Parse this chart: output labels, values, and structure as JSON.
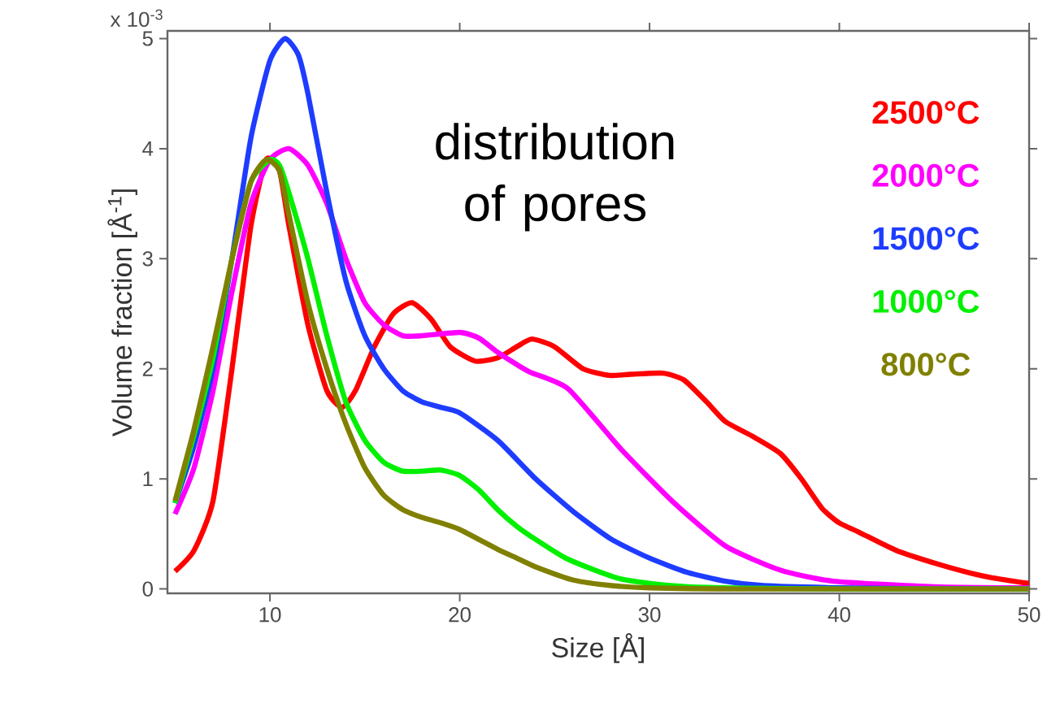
{
  "chart_data": {
    "type": "line",
    "xlabel": "Size [Å]",
    "ylabel": "Volume fraction [Å$^{-1}$]",
    "annotations": [
      "distribution of pores",
      "x 10$^{-3}$"
    ],
    "xlim": [
      4.6,
      50
    ],
    "xticks": [
      10,
      20,
      30,
      40,
      50
    ],
    "ylim": [
      -0.04,
      5.07
    ],
    "yticks": [
      0,
      1,
      2,
      3,
      4,
      5
    ],
    "grid": false,
    "legend": "top right",
    "marker": "none",
    "line_style": "solid",
    "series": [
      {
        "name": "2500°C",
        "color": "#ff0000",
        "x": [
          5,
          6,
          7,
          8,
          9,
          9.8,
          10.5,
          11,
          12,
          13,
          13.8,
          14.5,
          15.5,
          16.5,
          17.5,
          18.5,
          19.5,
          20.8,
          22,
          23,
          23.8,
          25,
          26.5,
          27.9,
          29,
          30.7,
          31.8,
          33,
          34,
          35.5,
          36.9,
          38,
          39.1,
          40,
          41.1,
          43,
          45.3,
          47,
          48.1,
          50
        ],
        "values": [
          0.16,
          0.35,
          0.8,
          2.0,
          3.3,
          3.9,
          3.8,
          3.3,
          2.4,
          1.8,
          1.65,
          1.8,
          2.2,
          2.5,
          2.6,
          2.45,
          2.2,
          2.07,
          2.1,
          2.2,
          2.27,
          2.2,
          2.0,
          1.94,
          1.95,
          1.96,
          1.9,
          1.7,
          1.52,
          1.38,
          1.23,
          1.0,
          0.73,
          0.6,
          0.51,
          0.35,
          0.22,
          0.14,
          0.1,
          0.05
        ]
      },
      {
        "name": "2000°C",
        "color": "#ff00ff",
        "x": [
          5,
          6,
          7,
          8,
          9,
          10,
          11,
          12,
          13,
          14,
          15,
          16,
          17,
          18,
          20,
          21,
          22,
          22.9,
          23.7,
          25.7,
          28.5,
          31.3,
          34,
          36.9,
          39.7,
          45,
          50
        ],
        "values": [
          0.68,
          1.1,
          1.8,
          2.7,
          3.5,
          3.9,
          4.0,
          3.85,
          3.5,
          3.0,
          2.6,
          2.4,
          2.3,
          2.3,
          2.33,
          2.28,
          2.15,
          2.05,
          1.97,
          1.82,
          1.27,
          0.78,
          0.39,
          0.17,
          0.07,
          0.02,
          0.01
        ]
      },
      {
        "name": "1500°C",
        "color": "#1e3cff",
        "x": [
          5,
          6,
          7,
          8,
          9,
          10,
          10.8,
          11.5,
          12,
          13,
          14,
          15,
          16,
          17,
          18,
          19,
          20,
          22,
          24,
          26,
          28,
          30,
          32,
          34,
          36,
          40,
          45,
          50
        ],
        "values": [
          0.78,
          1.3,
          2.0,
          3.0,
          4.1,
          4.8,
          5.0,
          4.85,
          4.5,
          3.6,
          2.8,
          2.3,
          2.0,
          1.8,
          1.7,
          1.65,
          1.6,
          1.35,
          1.0,
          0.7,
          0.45,
          0.28,
          0.15,
          0.07,
          0.03,
          0.01,
          0.0,
          0.0
        ]
      },
      {
        "name": "1000°C",
        "color": "#00f000",
        "x": [
          5,
          6,
          7,
          8,
          9,
          10,
          10.5,
          11,
          12,
          13,
          14,
          15,
          16,
          17,
          18,
          19,
          20,
          21,
          22,
          23,
          24,
          25.7,
          28.5,
          32,
          40,
          50
        ],
        "values": [
          0.78,
          1.4,
          2.1,
          3.0,
          3.7,
          3.9,
          3.85,
          3.6,
          3.0,
          2.3,
          1.7,
          1.35,
          1.15,
          1.07,
          1.07,
          1.08,
          1.03,
          0.9,
          0.72,
          0.57,
          0.45,
          0.27,
          0.09,
          0.02,
          0.0,
          0.0
        ]
      },
      {
        "name": "800°C",
        "color": "#808000",
        "x": [
          5,
          6,
          7,
          8,
          9,
          9.8,
          10.5,
          11,
          12,
          13,
          14,
          15,
          16,
          17,
          18,
          19,
          20,
          21,
          22,
          23,
          24,
          26,
          28,
          30,
          35,
          50
        ],
        "values": [
          0.8,
          1.45,
          2.2,
          3.0,
          3.7,
          3.9,
          3.8,
          3.4,
          2.6,
          2.0,
          1.5,
          1.1,
          0.85,
          0.72,
          0.65,
          0.6,
          0.54,
          0.45,
          0.36,
          0.28,
          0.2,
          0.08,
          0.03,
          0.01,
          0.0,
          0.0
        ]
      }
    ]
  }
}
